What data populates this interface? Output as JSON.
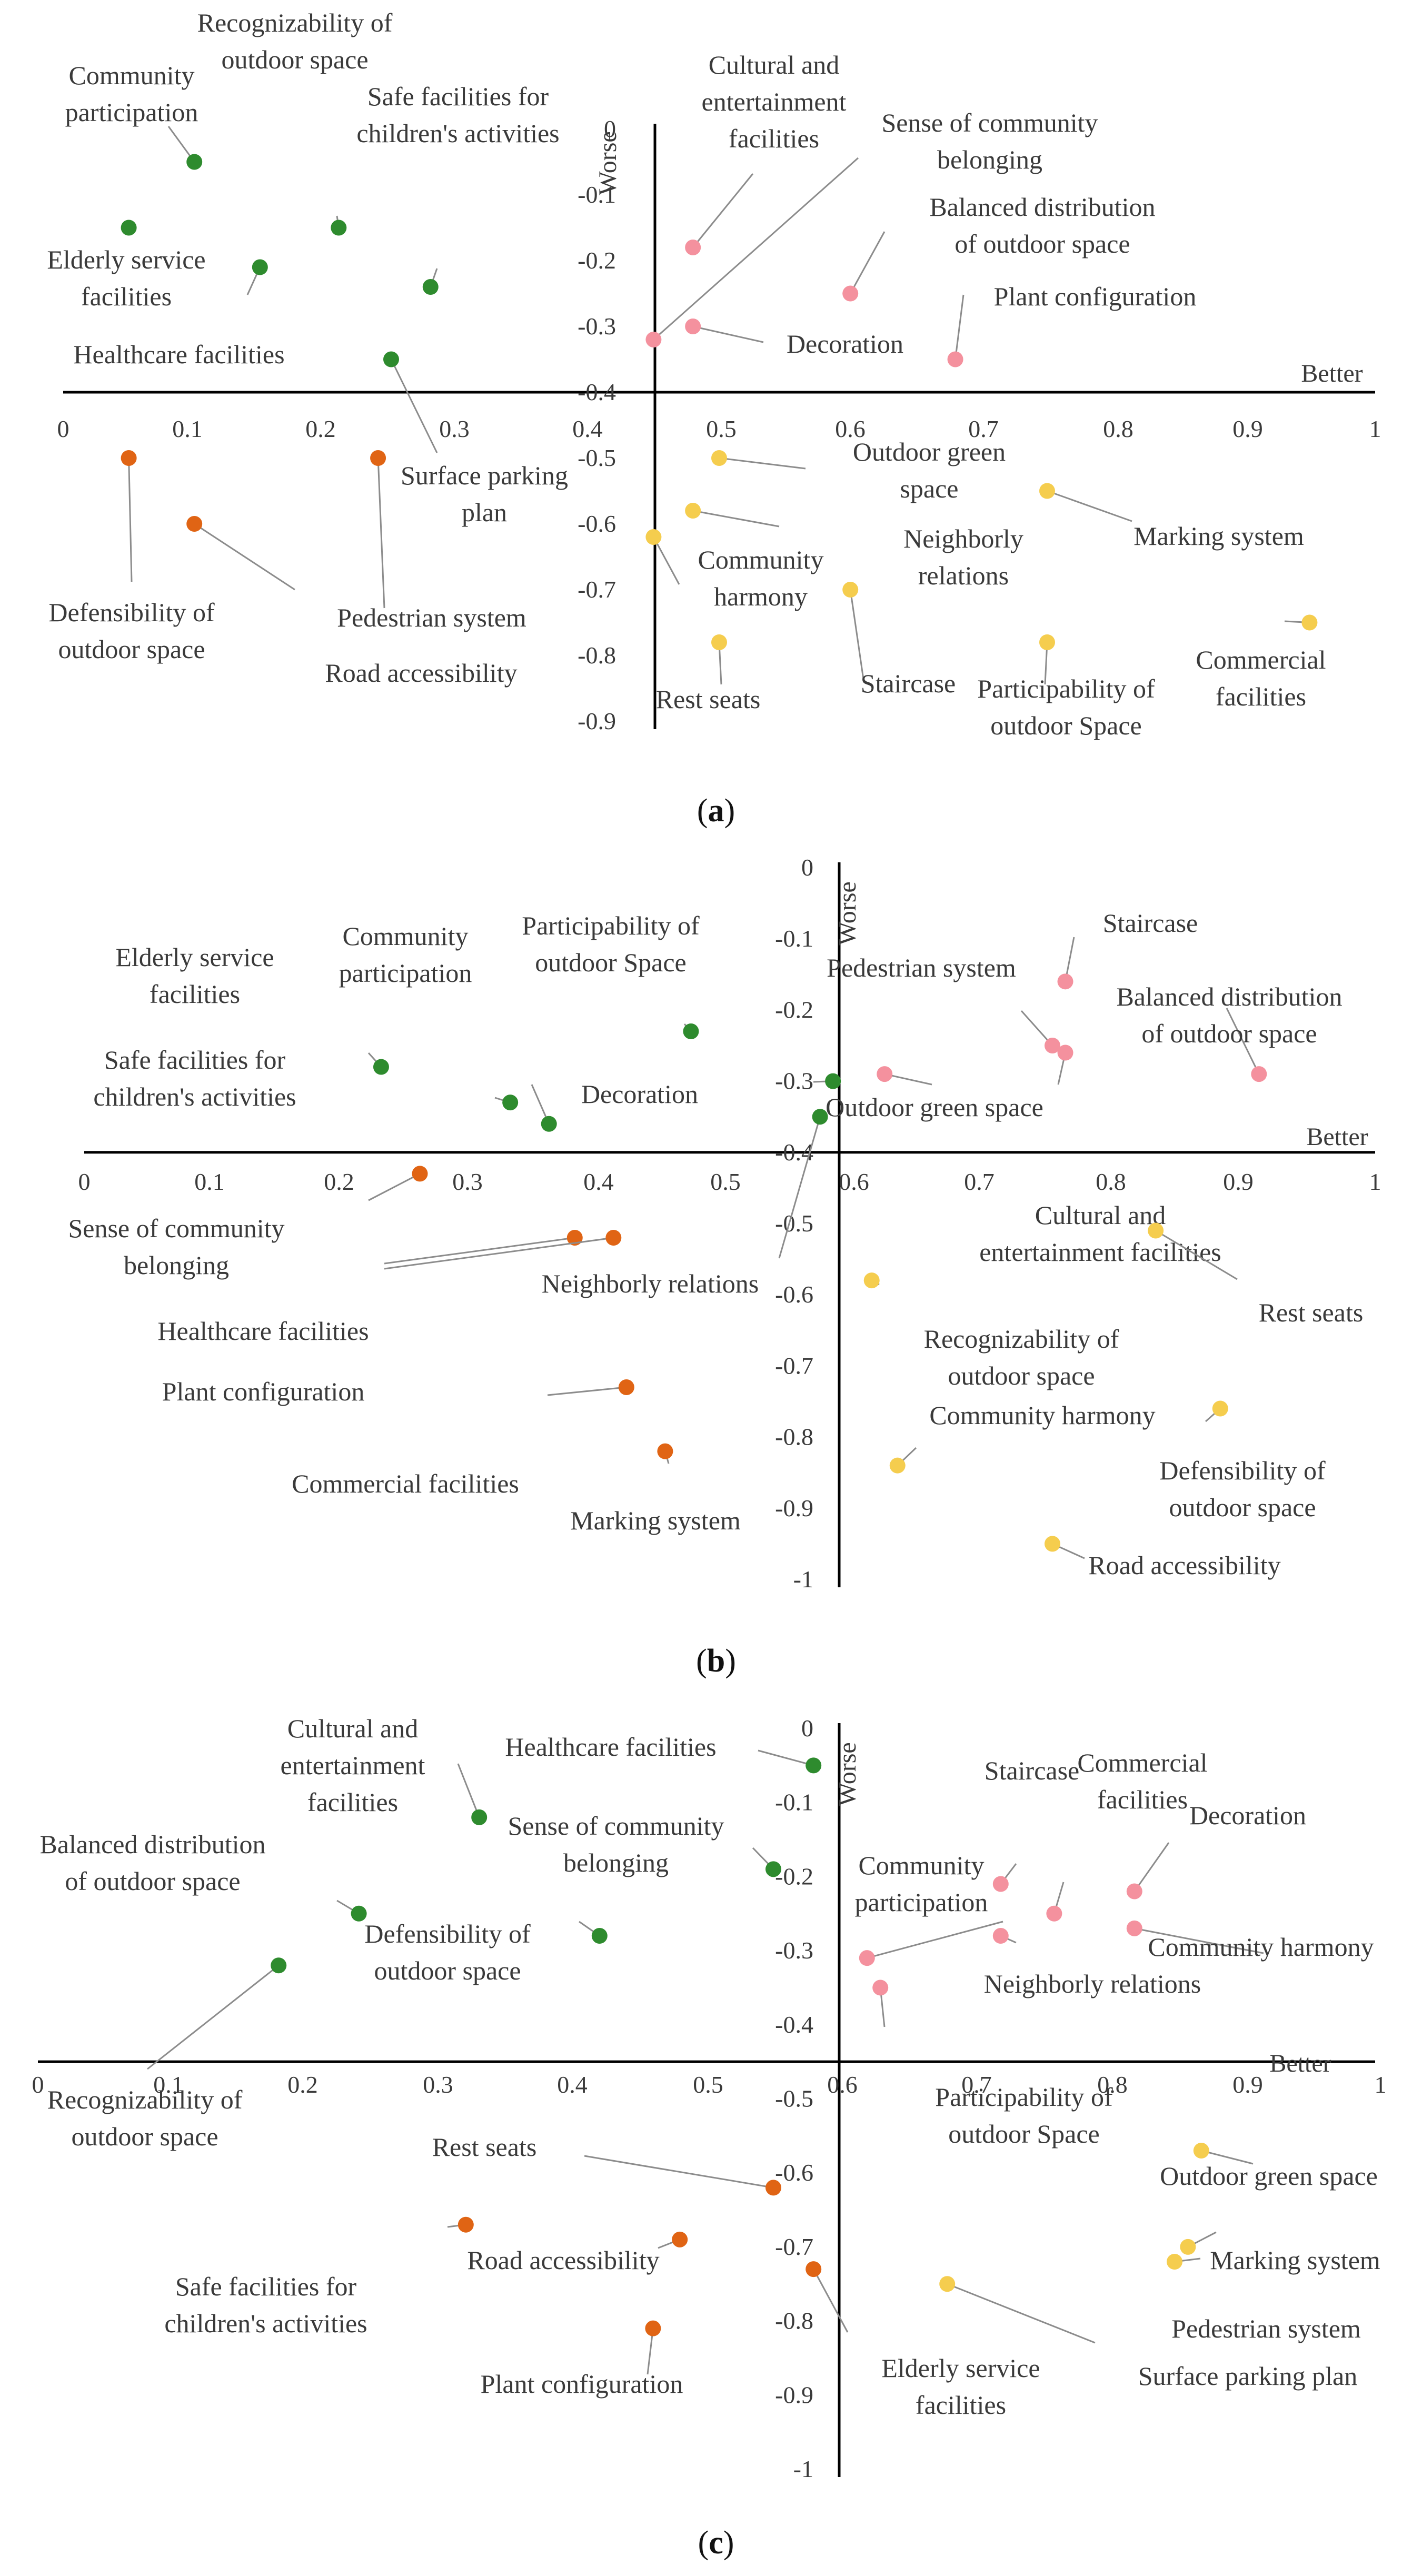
{
  "colors": {
    "Q1": "#f4919e",
    "Q2": "#2e8b2e",
    "Q3": "#e06414",
    "Q4": "#f5cd4e"
  },
  "chart_data": [
    {
      "id": "a",
      "type": "scatter",
      "caption": "a",
      "xlabel": "Better",
      "ylabel": "Worse",
      "xlim": [
        0,
        1
      ],
      "ylim": [
        -0.9,
        0
      ],
      "x_ticks": [
        "0",
        "0.1",
        "0.2",
        "0.3",
        "0.4",
        "0.5",
        "0.6",
        "0.7",
        "0.8",
        "0.9",
        "1"
      ],
      "y_ticks": [
        "0",
        "-0.1",
        "-0.2",
        "-0.3",
        "-0.4",
        "-0.5",
        "-0.6",
        "-0.7",
        "-0.8",
        "-0.9"
      ],
      "points": [
        {
          "label": "Community\nparticipation",
          "x": 0.1,
          "y": -0.05,
          "q": "Q2"
        },
        {
          "label": "Recognizability of\noutdoor space",
          "x": 0.21,
          "y": -0.15,
          "q": "Q2"
        },
        {
          "label": "Safe facilities for\nchildren's activities",
          "x": 0.28,
          "y": -0.24,
          "q": "Q2"
        },
        {
          "label": "Elderly service\nfacilities",
          "x": 0.05,
          "y": -0.15,
          "q": "Q2"
        },
        {
          "label": "Healthcare facilities",
          "x": 0.15,
          "y": -0.21,
          "q": "Q2"
        },
        {
          "label": "Surface parking\nplan",
          "x": 0.25,
          "y": -0.35,
          "q": "Q2"
        },
        {
          "label": "Cultural and\nentertainment\nfacilities",
          "x": 0.48,
          "y": -0.18,
          "q": "Q1"
        },
        {
          "label": "Sense of community\nbelonging",
          "x": 0.45,
          "y": -0.32,
          "q": "Q1"
        },
        {
          "label": "Balanced distribution\nof outdoor space",
          "x": 0.6,
          "y": -0.25,
          "q": "Q1"
        },
        {
          "label": "Decoration",
          "x": 0.48,
          "y": -0.3,
          "q": "Q1"
        },
        {
          "label": "Plant configuration",
          "x": 0.68,
          "y": -0.35,
          "q": "Q1"
        },
        {
          "label": "Defensibility of\noutdoor space",
          "x": 0.05,
          "y": -0.5,
          "q": "Q3"
        },
        {
          "label": "Road accessibility",
          "x": 0.1,
          "y": -0.6,
          "q": "Q3"
        },
        {
          "label": "Pedestrian system",
          "x": 0.24,
          "y": -0.5,
          "q": "Q3"
        },
        {
          "label": "Outdoor green\nspace",
          "x": 0.5,
          "y": -0.5,
          "q": "Q4"
        },
        {
          "label": "Marking system",
          "x": 0.75,
          "y": -0.55,
          "q": "Q4"
        },
        {
          "label": "Neighborly\nrelations",
          "x": 0.48,
          "y": -0.58,
          "q": "Q4"
        },
        {
          "label": "Community\nharmony",
          "x": 0.45,
          "y": -0.62,
          "q": "Q4"
        },
        {
          "label": "Staircase",
          "x": 0.6,
          "y": -0.7,
          "q": "Q4"
        },
        {
          "label": "Rest seats",
          "x": 0.5,
          "y": -0.78,
          "q": "Q4"
        },
        {
          "label": "Participability of\noutdoor Space",
          "x": 0.75,
          "y": -0.78,
          "q": "Q4"
        },
        {
          "label": "Commercial\nfacilities",
          "x": 0.95,
          "y": -0.75,
          "q": "Q4"
        }
      ]
    },
    {
      "id": "b",
      "type": "scatter",
      "caption": "b",
      "xlabel": "Better",
      "ylabel": "Worse",
      "xlim": [
        0,
        1
      ],
      "ylim": [
        -1,
        0
      ],
      "x_ticks": [
        "0",
        "0.1",
        "0.2",
        "0.3",
        "0.4",
        "0.5",
        "0.6",
        "0.7",
        "0.8",
        "0.9",
        "1"
      ],
      "y_ticks": [
        "0",
        "-0.1",
        "-0.2",
        "-0.3",
        "-0.4",
        "-0.5",
        "-0.6",
        "-0.7",
        "-0.8",
        "-0.9",
        "-1"
      ],
      "points": [
        {
          "label": "Elderly service\nfacilities",
          "x": 0.23,
          "y": -0.28,
          "q": "Q2"
        },
        {
          "label": "Community\nparticipation",
          "x": 0.36,
          "y": -0.36,
          "q": "Q2"
        },
        {
          "label": "Participability of\noutdoor Space",
          "x": 0.47,
          "y": -0.23,
          "q": "Q2"
        },
        {
          "label": "Safe facilities for\nchildren's activities",
          "x": 0.33,
          "y": -0.33,
          "q": "Q2"
        },
        {
          "label": "Decoration",
          "x": 0.58,
          "y": -0.3,
          "q": "Q2"
        },
        {
          "label": "Neighborly relations",
          "x": 0.57,
          "y": -0.35,
          "q": "Q2"
        },
        {
          "label": "Staircase",
          "x": 0.76,
          "y": -0.16,
          "q": "Q1"
        },
        {
          "label": "Pedestrian system",
          "x": 0.75,
          "y": -0.25,
          "q": "Q1"
        },
        {
          "label": "Balanced distribution\nof outdoor space",
          "x": 0.91,
          "y": -0.29,
          "q": "Q1"
        },
        {
          "label": "Outdoor green space",
          "x": 0.62,
          "y": -0.29,
          "q": "Q1"
        },
        {
          "label": "Cultural and\nentertainment facilities",
          "x": 0.76,
          "y": -0.26,
          "q": "Q1"
        },
        {
          "label": "Sense of community\nbelonging",
          "x": 0.26,
          "y": -0.43,
          "q": "Q3"
        },
        {
          "label": "Healthcare facilities",
          "x": 0.38,
          "y": -0.52,
          "q": "Q3"
        },
        {
          "label": "Plant configuration",
          "x": 0.41,
          "y": -0.52,
          "q": "Q3"
        },
        {
          "label": "Commercial facilities",
          "x": 0.42,
          "y": -0.73,
          "q": "Q3"
        },
        {
          "label": "Marking system",
          "x": 0.45,
          "y": -0.82,
          "q": "Q3"
        },
        {
          "label": "Rest seats",
          "x": 0.83,
          "y": -0.51,
          "q": "Q4"
        },
        {
          "label": "Recognizability of\noutdoor space",
          "x": 0.61,
          "y": -0.58,
          "q": "Q4"
        },
        {
          "label": "Community harmony",
          "x": 0.63,
          "y": -0.84,
          "q": "Q4"
        },
        {
          "label": "Defensibility of\noutdoor space",
          "x": 0.88,
          "y": -0.76,
          "q": "Q4"
        },
        {
          "label": "Road accessibility",
          "x": 0.75,
          "y": -0.95,
          "q": "Q4"
        }
      ]
    },
    {
      "id": "c",
      "type": "scatter",
      "caption": "c",
      "xlabel": "Better",
      "ylabel": "Worse",
      "xlim": [
        0,
        1
      ],
      "ylim": [
        -1,
        0
      ],
      "x_ticks": [
        "0",
        "0.1",
        "0.2",
        "0.3",
        "0.4",
        "0.5",
        "0.6",
        "0.7",
        "0.8",
        "0.9",
        "1"
      ],
      "y_ticks": [
        "0",
        "-0.1",
        "-0.2",
        "-0.3",
        "-0.4",
        "-0.5",
        "-0.6",
        "-0.7",
        "-0.8",
        "-0.9",
        "-1"
      ],
      "points": [
        {
          "label": "Healthcare facilities",
          "x": 0.58,
          "y": -0.05,
          "q": "Q2"
        },
        {
          "label": "Cultural and\nentertainment\nfacilities",
          "x": 0.33,
          "y": -0.12,
          "q": "Q2"
        },
        {
          "label": "Sense of community\nbelonging",
          "x": 0.55,
          "y": -0.19,
          "q": "Q2"
        },
        {
          "label": "Balanced distribution\nof outdoor space",
          "x": 0.24,
          "y": -0.25,
          "q": "Q2"
        },
        {
          "label": "Defensibility of\noutdoor space",
          "x": 0.42,
          "y": -0.28,
          "q": "Q2"
        },
        {
          "label": "Recognizability of\noutdoor space",
          "x": 0.18,
          "y": -0.32,
          "q": "Q2"
        },
        {
          "label": "Staircase",
          "x": 0.72,
          "y": -0.21,
          "q": "Q1"
        },
        {
          "label": "Commercial\nfacilities",
          "x": 0.76,
          "y": -0.25,
          "q": "Q1"
        },
        {
          "label": "Decoration",
          "x": 0.82,
          "y": -0.22,
          "q": "Q1"
        },
        {
          "label": "Community harmony",
          "x": 0.82,
          "y": -0.27,
          "q": "Q1"
        },
        {
          "label": "Community\nparticipation",
          "x": 0.62,
          "y": -0.31,
          "q": "Q1"
        },
        {
          "label": "Neighborly relations",
          "x": 0.72,
          "y": -0.28,
          "q": "Q1"
        },
        {
          "label": "Participability of\noutdoor Space",
          "x": 0.63,
          "y": -0.35,
          "q": "Q1"
        },
        {
          "label": "Rest seats",
          "x": 0.55,
          "y": -0.62,
          "q": "Q3"
        },
        {
          "label": "Safe facilities for\nchildren's activities",
          "x": 0.32,
          "y": -0.67,
          "q": "Q3"
        },
        {
          "label": "Road accessibility",
          "x": 0.48,
          "y": -0.69,
          "q": "Q3"
        },
        {
          "label": "Plant configuration",
          "x": 0.46,
          "y": -0.81,
          "q": "Q3"
        },
        {
          "label": "Elderly service\nfacilities",
          "x": 0.58,
          "y": -0.73,
          "q": "Q3"
        },
        {
          "label": "Outdoor green space",
          "x": 0.87,
          "y": -0.57,
          "q": "Q4"
        },
        {
          "label": "Marking system",
          "x": 0.86,
          "y": -0.7,
          "q": "Q4"
        },
        {
          "label": "Pedestrian system",
          "x": 0.85,
          "y": -0.72,
          "q": "Q4"
        },
        {
          "label": "Surface parking plan",
          "x": 0.68,
          "y": -0.75,
          "q": "Q4"
        }
      ]
    }
  ]
}
